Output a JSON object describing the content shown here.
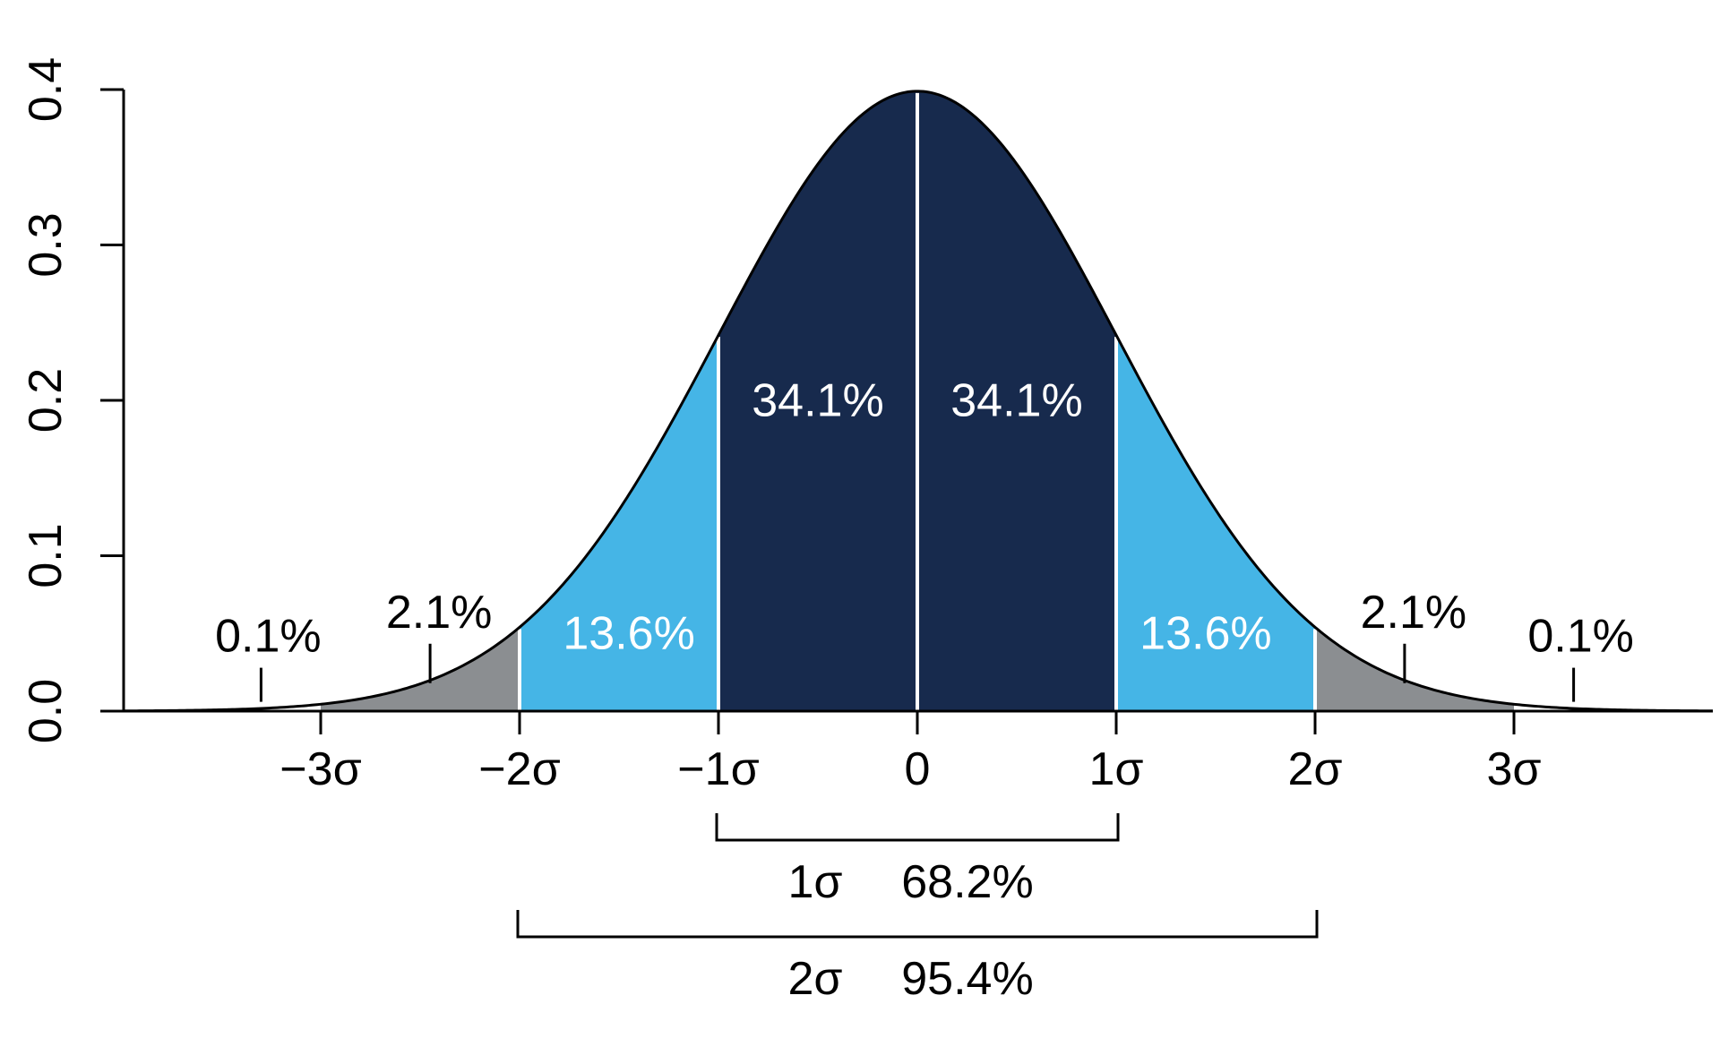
{
  "chart_data": {
    "type": "area",
    "title": "",
    "xlabel": "",
    "ylabel": "",
    "xlim": [
      -4,
      4
    ],
    "ylim": [
      0,
      0.4
    ],
    "y_ticks": [
      {
        "value": 0.0,
        "label": "0.0"
      },
      {
        "value": 0.1,
        "label": "0.1"
      },
      {
        "value": 0.2,
        "label": "0.2"
      },
      {
        "value": 0.3,
        "label": "0.3"
      },
      {
        "value": 0.4,
        "label": "0.4"
      }
    ],
    "x_ticks": [
      {
        "value": -3,
        "label": "−3σ"
      },
      {
        "value": -2,
        "label": "−2σ"
      },
      {
        "value": -1,
        "label": "−1σ"
      },
      {
        "value": 0,
        "label": "0"
      },
      {
        "value": 1,
        "label": "1σ"
      },
      {
        "value": 2,
        "label": "2σ"
      },
      {
        "value": 3,
        "label": "3σ"
      }
    ],
    "curve": {
      "distribution": "normal",
      "mean": 0,
      "sd": 1
    },
    "regions": [
      {
        "from": -3,
        "to": -2,
        "color": "#8b8e91",
        "label": "2.1%",
        "label_x": -2.45,
        "label_y": 0.018
      },
      {
        "from": -2,
        "to": -1,
        "color": "#45b5e6",
        "label": "13.6%",
        "label_x": -1.45,
        "label_y": 0.04
      },
      {
        "from": -1,
        "to": 0,
        "color": "#172a4d",
        "label": "34.1%",
        "label_x": -0.5,
        "label_y": 0.19
      },
      {
        "from": 0,
        "to": 1,
        "color": "#172a4d",
        "label": "34.1%",
        "label_x": 0.5,
        "label_y": 0.19
      },
      {
        "from": 1,
        "to": 2,
        "color": "#45b5e6",
        "label": "13.6%",
        "label_x": 1.45,
        "label_y": 0.04
      },
      {
        "from": 2,
        "to": 3,
        "color": "#8b8e91",
        "label": "2.1%",
        "label_x": 2.45,
        "label_y": 0.018
      }
    ],
    "tail_labels": [
      {
        "label": "0.1%",
        "x": -3.3,
        "y": 0.006
      },
      {
        "label": "0.1%",
        "x": 3.3,
        "y": 0.006
      }
    ],
    "brackets": [
      {
        "from": -1,
        "to": 1,
        "sigma_label": "1σ",
        "percent_label": "68.2%"
      },
      {
        "from": -2,
        "to": 2,
        "sigma_label": "2σ",
        "percent_label": "95.4%"
      }
    ],
    "grid": false,
    "legend": "none"
  }
}
